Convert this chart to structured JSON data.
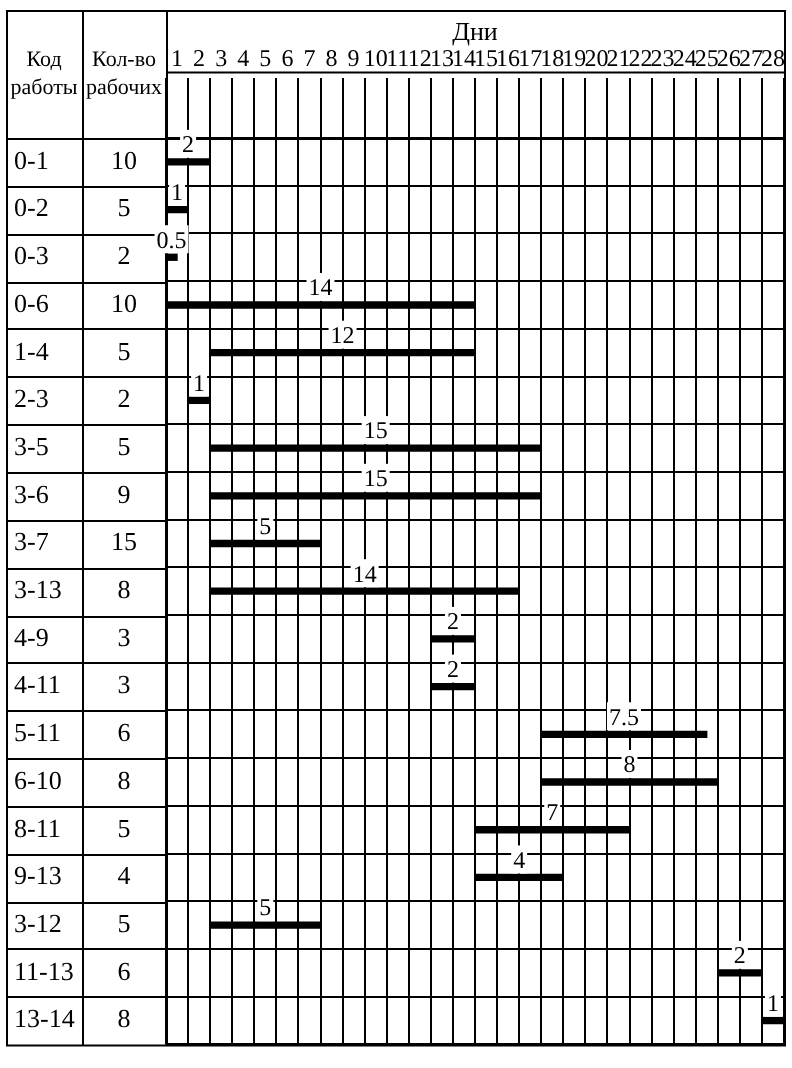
{
  "chart_data": {
    "type": "bar",
    "orientation": "horizontal",
    "xlabel": "Дни",
    "ylabel": "Код работы",
    "y2label": "Кол-во рабочих",
    "categories": [
      "0-1",
      "0-2",
      "0-3",
      "0-6",
      "1-4",
      "2-3",
      "3-5",
      "3-6",
      "3-7",
      "3-13",
      "4-9",
      "4-11",
      "5-11",
      "6-10",
      "8-11",
      "9-13",
      "3-12",
      "11-13",
      "13-14"
    ],
    "y2_categories": [
      "10",
      "5",
      "2",
      "10",
      "5",
      "2",
      "5",
      "9",
      "15",
      "8",
      "3",
      "3",
      "6",
      "8",
      "5",
      "4",
      "5",
      "6",
      "8"
    ],
    "base": [
      0,
      0,
      0,
      0,
      2,
      1,
      2,
      2,
      2,
      2,
      12,
      12,
      17,
      17,
      14,
      14,
      2,
      25,
      27
    ],
    "values": [
      2,
      1,
      0.5,
      14,
      12,
      1,
      15,
      15,
      5,
      14,
      2,
      2,
      7.5,
      8,
      7,
      4,
      5,
      2,
      1
    ],
    "color": "#000000",
    "data_labels": true,
    "grid": true,
    "xlim": [
      0,
      28
    ],
    "xticks": [
      {
        "value": 0,
        "label": null
      },
      {
        "value": 1,
        "label": null
      },
      {
        "value": 2,
        "label": null
      },
      {
        "value": 3,
        "label": null
      },
      {
        "value": 4,
        "label": null
      },
      {
        "value": 5,
        "label": null
      },
      {
        "value": 6,
        "label": null
      },
      {
        "value": 7,
        "label": null
      },
      {
        "value": 8,
        "label": null
      },
      {
        "value": 9,
        "label": null
      },
      {
        "value": 10,
        "label": null
      },
      {
        "value": 11,
        "label": null
      },
      {
        "value": 12,
        "label": null
      },
      {
        "value": 13,
        "label": null
      },
      {
        "value": 14,
        "label": null
      },
      {
        "value": 15,
        "label": null
      },
      {
        "value": 16,
        "label": null
      },
      {
        "value": 17,
        "label": null
      },
      {
        "value": 18,
        "label": null
      },
      {
        "value": 19,
        "label": null
      },
      {
        "value": 20,
        "label": null
      },
      {
        "value": 21,
        "label": null
      },
      {
        "value": 22,
        "label": null
      },
      {
        "value": 23,
        "label": null
      },
      {
        "value": 24,
        "label": null
      },
      {
        "value": 25,
        "label": null
      },
      {
        "value": 26,
        "label": null
      },
      {
        "value": 27,
        "label": null
      },
      {
        "value": 28,
        "label": null
      },
      {
        "value": 0.5,
        "label": "1"
      },
      {
        "value": 1.5,
        "label": "2"
      },
      {
        "value": 2.5,
        "label": "3"
      },
      {
        "value": 3.5,
        "label": "4"
      },
      {
        "value": 4.5,
        "label": "5"
      },
      {
        "value": 5.5,
        "label": "6"
      },
      {
        "value": 6.5,
        "label": "7"
      },
      {
        "value": 7.5,
        "label": "8"
      },
      {
        "value": 8.5,
        "label": "9"
      },
      {
        "value": 9.5,
        "label": "10"
      },
      {
        "value": 10.5,
        "label": "11"
      },
      {
        "value": 11.5,
        "label": "12"
      },
      {
        "value": 12.5,
        "label": "13"
      },
      {
        "value": 13.5,
        "label": "14"
      },
      {
        "value": 14.5,
        "label": "15"
      },
      {
        "value": 15.5,
        "label": "16"
      },
      {
        "value": 16.5,
        "label": "17"
      },
      {
        "value": 17.5,
        "label": "18"
      },
      {
        "value": 18.5,
        "label": "19"
      },
      {
        "value": 19.5,
        "label": "20"
      },
      {
        "value": 20.5,
        "label": "21"
      },
      {
        "value": 21.5,
        "label": "22"
      },
      {
        "value": 22.5,
        "label": "23"
      },
      {
        "value": 23.5,
        "label": "24"
      },
      {
        "value": 24.5,
        "label": "25"
      },
      {
        "value": 25.5,
        "label": "26"
      },
      {
        "value": 26.5,
        "label": "27"
      },
      {
        "value": 27.5,
        "label": "28"
      }
    ]
  }
}
